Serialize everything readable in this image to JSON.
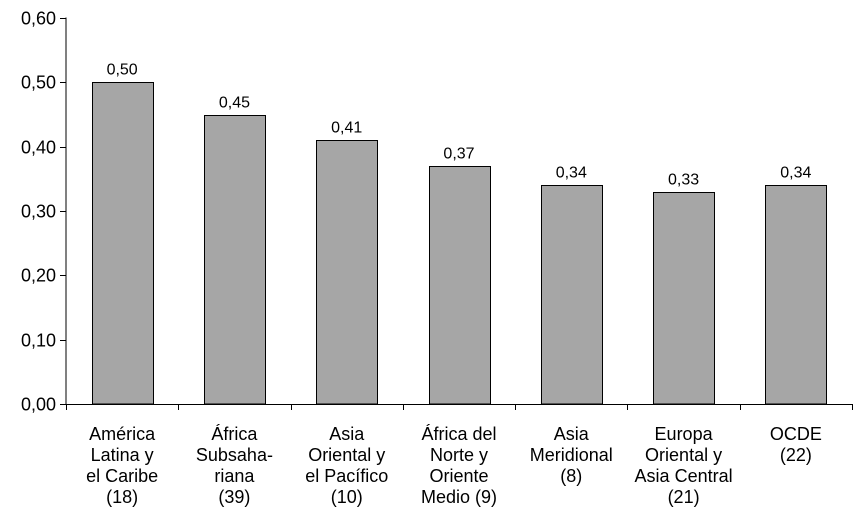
{
  "chart_data": {
    "type": "bar",
    "categories": [
      [
        "América",
        "Latina y",
        "el Caribe",
        "(18)"
      ],
      [
        "África",
        "Subsaha-",
        "riana",
        "(39)"
      ],
      [
        "Asia",
        "Oriental y",
        "el Pacífico",
        "(10)"
      ],
      [
        "África del",
        "Norte y",
        "Oriente",
        "Medio (9)"
      ],
      [
        "Asia",
        "Meridional",
        "(8)"
      ],
      [
        "Europa",
        "Oriental y",
        "Asia Central",
        "(21)"
      ],
      [
        "OCDE",
        "(22)"
      ]
    ],
    "values": [
      0.5,
      0.45,
      0.41,
      0.37,
      0.34,
      0.33,
      0.34
    ],
    "data_labels": [
      "0,50",
      "0,45",
      "0,41",
      "0,37",
      "0,34",
      "0,33",
      "0,34"
    ],
    "y_ticks": [
      0.0,
      0.1,
      0.2,
      0.3,
      0.4,
      0.5,
      0.6
    ],
    "y_tick_labels": [
      "0,00",
      "0,10",
      "0,20",
      "0,30",
      "0,40",
      "0,50",
      "0,60"
    ],
    "ylim": [
      0,
      0.6
    ],
    "title": "",
    "xlabel": "",
    "ylabel": "",
    "grid": false,
    "colors": {
      "bar_fill": "#a6a6a6",
      "bar_stroke": "#000000",
      "axis": "#000000"
    }
  }
}
